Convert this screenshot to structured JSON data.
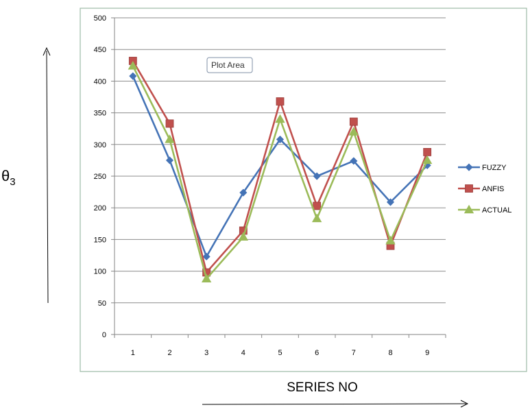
{
  "chart_data": {
    "type": "line",
    "title": "",
    "xlabel": "SERIES NO",
    "ylabel_base": "θ",
    "ylabel_sub": "3",
    "categories": [
      "1",
      "2",
      "3",
      "4",
      "5",
      "6",
      "7",
      "8",
      "9"
    ],
    "ylim": [
      0,
      500
    ],
    "yticks": [
      "0",
      "50",
      "100",
      "150",
      "200",
      "250",
      "300",
      "350",
      "400",
      "450",
      "500"
    ],
    "grid": true,
    "legend_position": "right",
    "series": [
      {
        "name": "FUZZY",
        "color": "#4473b6",
        "marker": "diamond",
        "values": [
          408,
          275,
          123,
          224,
          308,
          250,
          274,
          209,
          267
        ]
      },
      {
        "name": "ANFIS",
        "color": "#c0504d",
        "marker": "square",
        "values": [
          432,
          333,
          98,
          164,
          368,
          203,
          336,
          140,
          288
        ]
      },
      {
        "name": "ACTUAL",
        "color": "#9bbb59",
        "marker": "triangle",
        "values": [
          424,
          308,
          88,
          154,
          340,
          183,
          320,
          148,
          275
        ]
      }
    ],
    "tooltip": "Plot Area"
  }
}
